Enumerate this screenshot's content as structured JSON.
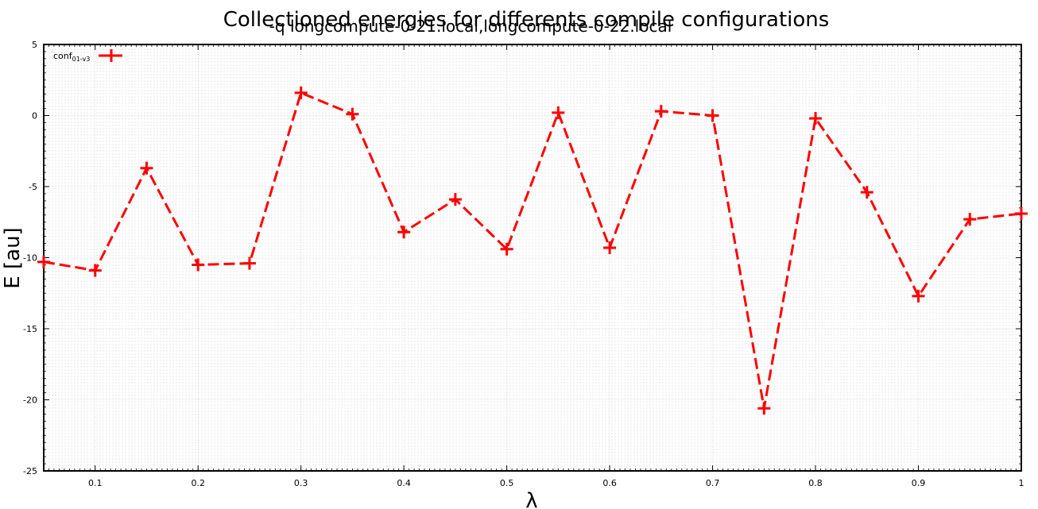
{
  "chart_data": {
    "type": "line",
    "title": "Collectioned energies for differents compile configurations",
    "subtitle": "-q longcompute-0-21.local,longcompute-0-22.local",
    "xlabel": "λ",
    "ylabel": "E [au]",
    "xlim": [
      0.05,
      1.0
    ],
    "ylim": [
      -25,
      5
    ],
    "x_ticks": [
      0.1,
      0.2,
      0.3,
      0.4,
      0.5,
      0.6,
      0.7,
      0.8,
      0.9,
      1.0
    ],
    "x_tick_labels": [
      "0.1",
      "0.2",
      "0.3",
      "0.4",
      "0.5",
      "0.6",
      "0.7",
      "0.8",
      "0.9",
      "1"
    ],
    "y_ticks": [
      5,
      0,
      -5,
      -10,
      -15,
      -20,
      -25
    ],
    "y_tick_labels": [
      "5",
      "0",
      "-5",
      "-10",
      "-15",
      "-20",
      "-25"
    ],
    "grid": true,
    "legend_position": "top-left",
    "series": [
      {
        "name": "conf",
        "name_subscript": "01-v3",
        "color": "#ff0000",
        "line_style": "dashed",
        "marker": "plus",
        "x": [
          0.05,
          0.1,
          0.15,
          0.2,
          0.25,
          0.3,
          0.35,
          0.4,
          0.45,
          0.5,
          0.55,
          0.6,
          0.65,
          0.7,
          0.75,
          0.8,
          0.85,
          0.9,
          0.95,
          1.0
        ],
        "y": [
          -10.3,
          -10.9,
          -3.7,
          -10.5,
          -10.4,
          1.6,
          0.1,
          -8.2,
          -5.9,
          -9.4,
          0.2,
          -9.3,
          0.3,
          0.0,
          -20.6,
          -0.2,
          -5.4,
          -12.7,
          -7.3,
          -6.9
        ]
      }
    ]
  }
}
